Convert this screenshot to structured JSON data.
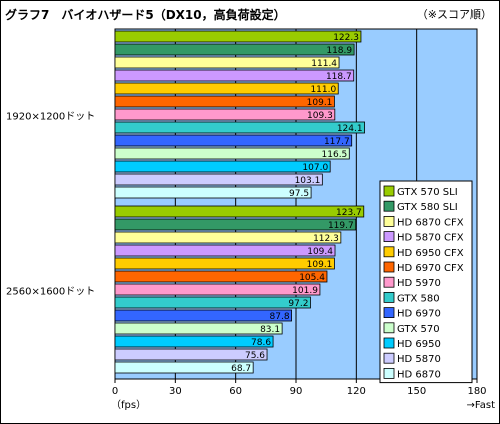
{
  "title": "グラフ7　バイオハザード5（DX10，高負荷設定）",
  "note": "（※スコア順）",
  "chart_data": {
    "type": "bar",
    "orientation": "horizontal",
    "xlim": [
      0,
      180
    ],
    "xticks": [
      "0",
      "30",
      "60",
      "90",
      "120",
      "150",
      "180"
    ],
    "xlabel_left": "（fps）",
    "xlabel_right": "→Fast",
    "grid": true,
    "legend_position": "right",
    "groups": [
      {
        "label": "1920×1200ドット",
        "bars": [
          {
            "name": "GTX 570 SLI",
            "value": 122.3,
            "color": "#99cc00"
          },
          {
            "name": "GTX 580 SLI",
            "value": 118.9,
            "color": "#339966"
          },
          {
            "name": "HD 6870 CFX",
            "value": 111.4,
            "color": "#ffff99"
          },
          {
            "name": "HD 5870 CFX",
            "value": 118.7,
            "color": "#cc99ff"
          },
          {
            "name": "HD 6950 CFX",
            "value": 111.0,
            "color": "#ffcc00"
          },
          {
            "name": "HD 6970 CFX",
            "value": 109.1,
            "color": "#ff6600"
          },
          {
            "name": "HD 5970",
            "value": 109.3,
            "color": "#ff99cc"
          },
          {
            "name": "GTX 580",
            "value": 124.1,
            "color": "#33cccc"
          },
          {
            "name": "HD 6970",
            "value": 117.7,
            "color": "#3366ff"
          },
          {
            "name": "GTX 570",
            "value": 116.5,
            "color": "#ccffcc"
          },
          {
            "name": "HD 6950",
            "value": 107.0,
            "color": "#00ccff"
          },
          {
            "name": "HD 5870",
            "value": 103.1,
            "color": "#ccccff"
          },
          {
            "name": "HD 6870",
            "value": 97.5,
            "color": "#ccffff"
          }
        ]
      },
      {
        "label": "2560×1600ドット",
        "bars": [
          {
            "name": "GTX 570 SLI",
            "value": 123.7,
            "color": "#99cc00"
          },
          {
            "name": "GTX 580 SLI",
            "value": 119.7,
            "color": "#339966"
          },
          {
            "name": "HD 6870 CFX",
            "value": 112.3,
            "color": "#ffff99"
          },
          {
            "name": "HD 5870 CFX",
            "value": 109.4,
            "color": "#cc99ff"
          },
          {
            "name": "HD 6950 CFX",
            "value": 109.1,
            "color": "#ffcc00"
          },
          {
            "name": "HD 6970 CFX",
            "value": 105.4,
            "color": "#ff6600"
          },
          {
            "name": "HD 5970",
            "value": 101.9,
            "color": "#ff99cc"
          },
          {
            "name": "GTX 580",
            "value": 97.2,
            "color": "#33cccc"
          },
          {
            "name": "HD 6970",
            "value": 87.8,
            "color": "#3366ff"
          },
          {
            "name": "GTX 570",
            "value": 83.1,
            "color": "#ccffcc"
          },
          {
            "name": "HD 6950",
            "value": 78.6,
            "color": "#00ccff"
          },
          {
            "name": "HD 5870",
            "value": 75.6,
            "color": "#ccccff"
          },
          {
            "name": "HD 6870",
            "value": 68.7,
            "color": "#ccffff"
          }
        ]
      }
    ],
    "legend": [
      {
        "name": "GTX 570 SLI",
        "color": "#99cc00"
      },
      {
        "name": "GTX 580 SLI",
        "color": "#339966"
      },
      {
        "name": "HD 6870 CFX",
        "color": "#ffff99"
      },
      {
        "name": "HD 5870 CFX",
        "color": "#cc99ff"
      },
      {
        "name": "HD 6950 CFX",
        "color": "#ffcc00"
      },
      {
        "name": "HD 6970 CFX",
        "color": "#ff6600"
      },
      {
        "name": "HD 5970",
        "color": "#ff99cc"
      },
      {
        "name": "GTX 580",
        "color": "#33cccc"
      },
      {
        "name": "HD 6970",
        "color": "#3366ff"
      },
      {
        "name": "GTX 570",
        "color": "#ccffcc"
      },
      {
        "name": "HD 6950",
        "color": "#00ccff"
      },
      {
        "name": "HD 5870",
        "color": "#ccccff"
      },
      {
        "name": "HD 6870",
        "color": "#ccffff"
      }
    ],
    "colors": {
      "plot_background": "#99ccff",
      "grid": "#000000"
    }
  }
}
